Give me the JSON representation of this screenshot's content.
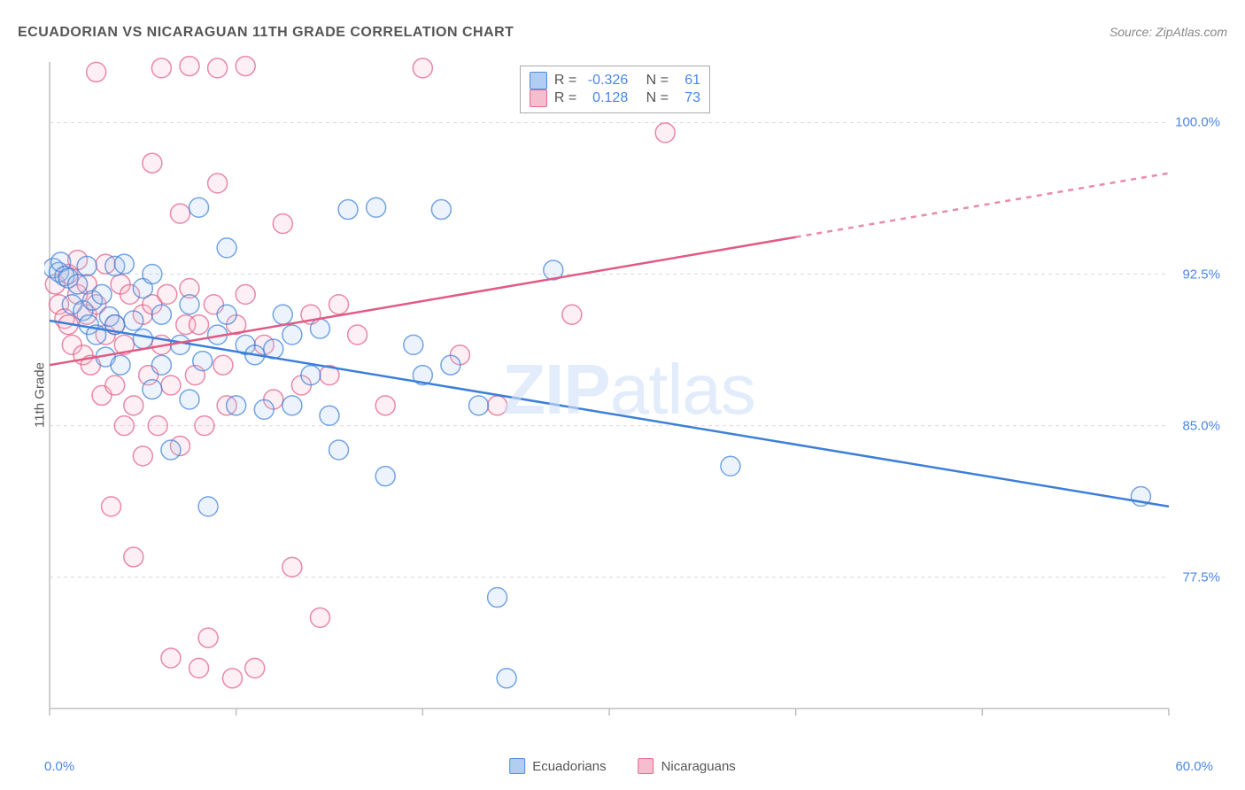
{
  "title": "ECUADORIAN VS NICARAGUAN 11TH GRADE CORRELATION CHART",
  "source": "Source: ZipAtlas.com",
  "ylabel": "11th Grade",
  "watermark_a": "ZIP",
  "watermark_b": "atlas",
  "chart": {
    "type": "scatter",
    "background_color": "#ffffff",
    "grid_color": "#d9d9d9",
    "axis_color": "#bfbfbf",
    "label_color_blue": "#4a86e8",
    "xlim": [
      0,
      60
    ],
    "ylim": [
      71,
      103
    ],
    "x_ticks": [
      0,
      10,
      20,
      30,
      40,
      50,
      60
    ],
    "y_ticks": [
      77.5,
      85.0,
      92.5,
      100.0
    ],
    "y_tick_labels": [
      "77.5%",
      "85.0%",
      "92.5%",
      "100.0%"
    ],
    "x_min_label": "0.0%",
    "x_max_label": "60.0%",
    "marker_radius": 11,
    "marker_fill_opacity": 0.22,
    "marker_stroke_width": 1.5,
    "line_width": 2.5,
    "series": [
      {
        "key": "ecuadorians",
        "label": "Ecuadorians",
        "stroke": "#3b7fd9",
        "fill": "#a9c8f0",
        "R": "-0.326",
        "N": "61",
        "trend": {
          "x1": 0,
          "y1": 90.2,
          "x2": 60,
          "y2": 81.0,
          "solid_to_x": 60
        },
        "points": [
          [
            0.2,
            92.8
          ],
          [
            0.5,
            92.6
          ],
          [
            0.6,
            93.1
          ],
          [
            0.8,
            92.4
          ],
          [
            1.0,
            92.3
          ],
          [
            1.2,
            91.0
          ],
          [
            1.5,
            92.0
          ],
          [
            1.8,
            90.7
          ],
          [
            2.0,
            92.9
          ],
          [
            2.1,
            90.0
          ],
          [
            2.3,
            91.2
          ],
          [
            2.5,
            89.5
          ],
          [
            2.8,
            91.5
          ],
          [
            3.0,
            88.4
          ],
          [
            3.2,
            90.4
          ],
          [
            3.5,
            92.9
          ],
          [
            3.5,
            90.0
          ],
          [
            3.8,
            88.0
          ],
          [
            4.0,
            93.0
          ],
          [
            4.5,
            90.2
          ],
          [
            5.0,
            89.3
          ],
          [
            5.0,
            91.8
          ],
          [
            5.5,
            86.8
          ],
          [
            5.5,
            92.5
          ],
          [
            6.0,
            88.0
          ],
          [
            6.0,
            90.5
          ],
          [
            6.5,
            83.8
          ],
          [
            7.0,
            89.0
          ],
          [
            7.5,
            91.0
          ],
          [
            7.5,
            86.3
          ],
          [
            8.0,
            95.8
          ],
          [
            8.2,
            88.2
          ],
          [
            8.5,
            81.0
          ],
          [
            9.0,
            89.5
          ],
          [
            9.5,
            90.5
          ],
          [
            9.5,
            93.8
          ],
          [
            10.0,
            86.0
          ],
          [
            10.5,
            89.0
          ],
          [
            11.0,
            88.5
          ],
          [
            11.5,
            85.8
          ],
          [
            12.0,
            88.8
          ],
          [
            12.5,
            90.5
          ],
          [
            13.0,
            86.0
          ],
          [
            13.0,
            89.5
          ],
          [
            14.0,
            87.5
          ],
          [
            14.5,
            89.8
          ],
          [
            15.0,
            85.5
          ],
          [
            15.5,
            83.8
          ],
          [
            16.0,
            95.7
          ],
          [
            17.5,
            95.8
          ],
          [
            18.0,
            82.5
          ],
          [
            19.5,
            89.0
          ],
          [
            20.0,
            87.5
          ],
          [
            21.0,
            95.7
          ],
          [
            21.5,
            88.0
          ],
          [
            23.0,
            86.0
          ],
          [
            24.0,
            76.5
          ],
          [
            24.5,
            72.5
          ],
          [
            27.0,
            92.7
          ],
          [
            36.5,
            83.0
          ],
          [
            58.5,
            81.5
          ]
        ]
      },
      {
        "key": "nicaraguans",
        "label": "Nicaraguans",
        "stroke": "#e05a84",
        "fill": "#f5b6c8",
        "R": "0.128",
        "N": "73",
        "trend": {
          "x1": 0,
          "y1": 88.0,
          "x2": 60,
          "y2": 97.5,
          "solid_to_x": 40
        },
        "points": [
          [
            0.3,
            92.0
          ],
          [
            0.5,
            91.0
          ],
          [
            0.8,
            90.3
          ],
          [
            1.0,
            92.5
          ],
          [
            1.0,
            90.0
          ],
          [
            1.2,
            89.0
          ],
          [
            1.5,
            91.5
          ],
          [
            1.5,
            93.2
          ],
          [
            1.8,
            88.5
          ],
          [
            2.0,
            90.5
          ],
          [
            2.0,
            92.0
          ],
          [
            2.2,
            88.0
          ],
          [
            2.5,
            102.5
          ],
          [
            2.5,
            91.0
          ],
          [
            2.8,
            86.5
          ],
          [
            3.0,
            89.5
          ],
          [
            3.0,
            93.0
          ],
          [
            3.3,
            81.0
          ],
          [
            3.5,
            90.0
          ],
          [
            3.5,
            87.0
          ],
          [
            3.8,
            92.0
          ],
          [
            4.0,
            89.0
          ],
          [
            4.0,
            85.0
          ],
          [
            4.3,
            91.5
          ],
          [
            4.5,
            86.0
          ],
          [
            4.5,
            78.5
          ],
          [
            5.0,
            83.5
          ],
          [
            5.0,
            90.5
          ],
          [
            5.3,
            87.5
          ],
          [
            5.5,
            98.0
          ],
          [
            5.5,
            91.0
          ],
          [
            5.8,
            85.0
          ],
          [
            6.0,
            102.7
          ],
          [
            6.0,
            89.0
          ],
          [
            6.3,
            91.5
          ],
          [
            6.5,
            87.0
          ],
          [
            6.5,
            73.5
          ],
          [
            7.0,
            95.5
          ],
          [
            7.0,
            84.0
          ],
          [
            7.3,
            90.0
          ],
          [
            7.5,
            102.8
          ],
          [
            7.5,
            91.8
          ],
          [
            7.8,
            87.5
          ],
          [
            8.0,
            73.0
          ],
          [
            8.0,
            90.0
          ],
          [
            8.3,
            85.0
          ],
          [
            8.5,
            74.5
          ],
          [
            8.8,
            91.0
          ],
          [
            9.0,
            102.7
          ],
          [
            9.0,
            97.0
          ],
          [
            9.3,
            88.0
          ],
          [
            9.5,
            86.0
          ],
          [
            9.8,
            72.5
          ],
          [
            10.0,
            90.0
          ],
          [
            10.5,
            102.8
          ],
          [
            10.5,
            91.5
          ],
          [
            11.0,
            73.0
          ],
          [
            11.5,
            89.0
          ],
          [
            12.0,
            86.3
          ],
          [
            12.5,
            95.0
          ],
          [
            13.0,
            78.0
          ],
          [
            13.5,
            87.0
          ],
          [
            14.0,
            90.5
          ],
          [
            14.5,
            75.5
          ],
          [
            15.0,
            87.5
          ],
          [
            15.5,
            91.0
          ],
          [
            16.5,
            89.5
          ],
          [
            18.0,
            86.0
          ],
          [
            20.0,
            102.7
          ],
          [
            22.0,
            88.5
          ],
          [
            24.0,
            86.0
          ],
          [
            28.0,
            90.5
          ],
          [
            33.0,
            99.5
          ]
        ]
      }
    ]
  },
  "stats_header_R": "R =",
  "stats_header_N": "N ="
}
